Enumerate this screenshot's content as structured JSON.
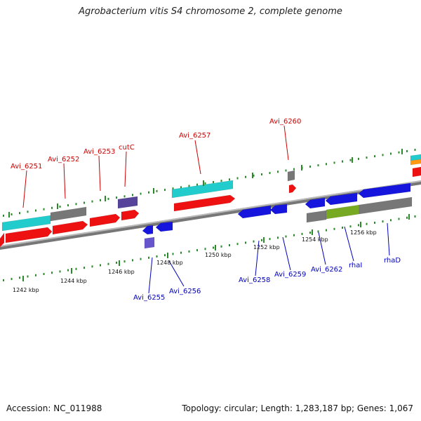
{
  "title": "Agrobacterium vitis S4 chromosome 2, complete genome",
  "footer": {
    "accession": "Accession: NC_011988",
    "summary": "Topology: circular; Length: 1,283,187 bp; Genes: 1,067"
  },
  "colors": {
    "forward_gene": "#ee1111",
    "reverse_gene": "#1515dd",
    "rna": "#22cccc",
    "pseudo": "#777777",
    "other": "#77aa22",
    "label_forward": "#cc0000",
    "label_reverse": "#0000bb",
    "tick": "#2a8a2a"
  },
  "scale": {
    "ticks": [
      {
        "label": "1242 kbp"
      },
      {
        "label": "1244 kbp"
      },
      {
        "label": "1246 kbp"
      },
      {
        "label": "1248 kbp"
      },
      {
        "label": "1250 kbp"
      },
      {
        "label": "1252 kbp"
      },
      {
        "label": "1254 kbp"
      },
      {
        "label": "1256 kbp"
      }
    ]
  },
  "genes_top": [
    {
      "label": "Avi_6251"
    },
    {
      "label": "Avi_6252"
    },
    {
      "label": "Avi_6253"
    },
    {
      "label": "cutC"
    },
    {
      "label": "Avi_6257"
    },
    {
      "label": "Avi_6260"
    }
  ],
  "genes_bottom": [
    {
      "label": "Avi_6255"
    },
    {
      "label": "Avi_6256"
    },
    {
      "label": "Avi_6258"
    },
    {
      "label": "Avi_6259"
    },
    {
      "label": "Avi_6262"
    },
    {
      "label": "rhaI"
    },
    {
      "label": "rhaD"
    }
  ]
}
